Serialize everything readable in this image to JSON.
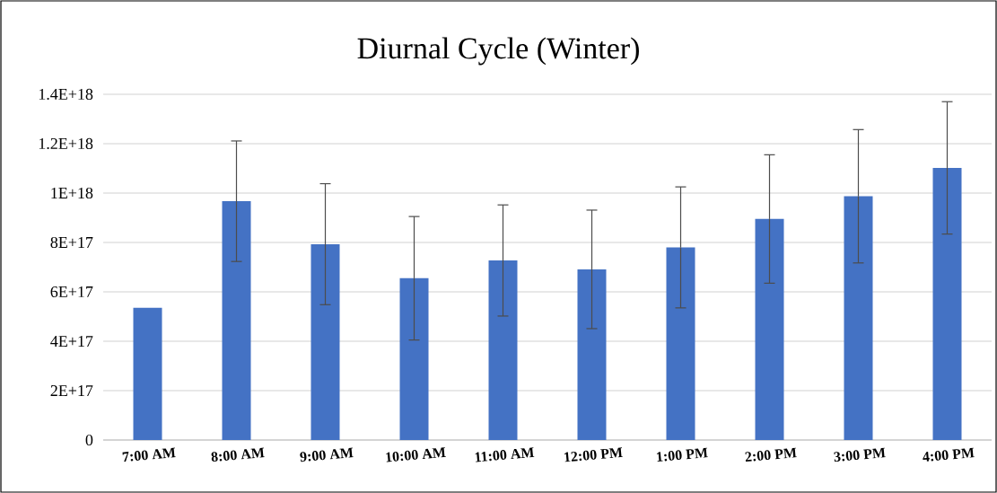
{
  "chart_data": {
    "type": "bar",
    "title": "Diurnal Cycle (Winter)",
    "categories": [
      "7:00 AM",
      "8:00 AM",
      "9:00 AM",
      "10:00 AM",
      "11:00 AM",
      "12:00 PM",
      "1:00 PM",
      "2:00 PM",
      "3:00 PM",
      "4:00 PM"
    ],
    "values": [
      5.35e+17,
      9.67e+17,
      7.93e+17,
      6.55e+17,
      7.27e+17,
      6.91e+17,
      7.8e+17,
      8.95e+17,
      9.87e+17,
      1.102e+18
    ],
    "errors": [
      null,
      2.44e+17,
      2.45e+17,
      2.5e+17,
      2.25e+17,
      2.4e+17,
      2.45e+17,
      2.6e+17,
      2.7e+17,
      2.68e+17
    ],
    "color": "#4472c4",
    "ylim": [
      0,
      1.4e+18
    ],
    "yticks": [
      0,
      {
        "value": 2e+17,
        "label": "2E+17"
      },
      {
        "value": 4e+17,
        "label": "4E+17"
      },
      {
        "value": 6e+17,
        "label": "6E+17"
      },
      {
        "value": 8e+17,
        "label": "8E+17"
      },
      {
        "value": 1e+18,
        "label": "1E+18"
      },
      {
        "value": 1.2e+18,
        "label": "1.2E+18"
      },
      {
        "value": 1.4e+18,
        "label": "1.4E+18"
      }
    ],
    "grid": "y"
  }
}
